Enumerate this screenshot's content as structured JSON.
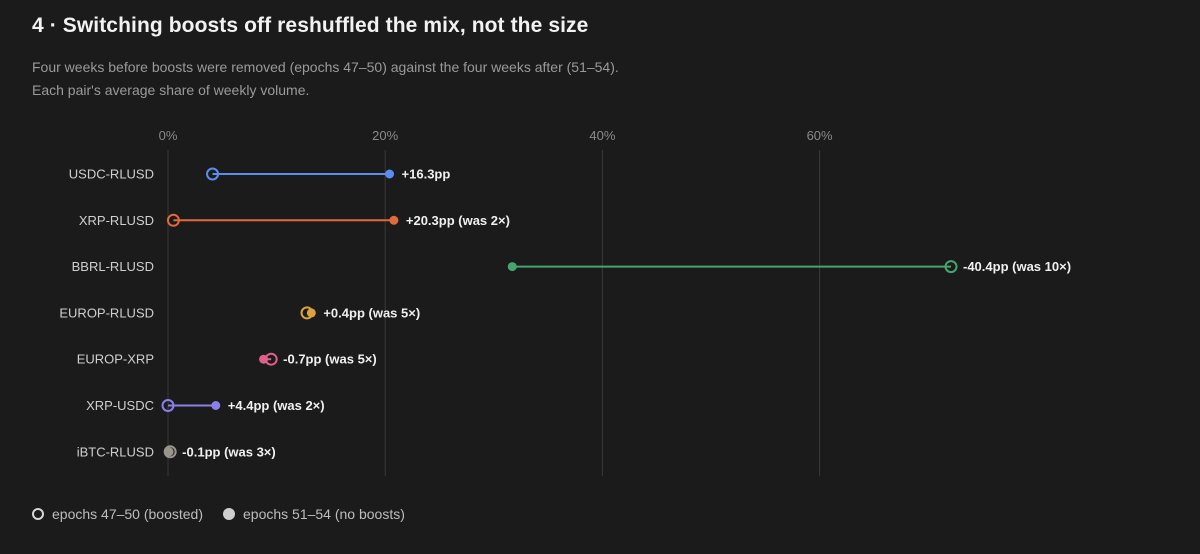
{
  "header": {
    "title": "4 · Switching boosts off reshuffled the mix, not the size",
    "subtitle_line1": "Four weeks before boosts were removed (epochs 47–50) against the four weeks after (51–54).",
    "subtitle_line2": "Each pair's average share of weekly volume."
  },
  "legend": {
    "before_label": "epochs 47–50 (boosted)",
    "after_label": "epochs 51–54 (no boosts)"
  },
  "chart_data": {
    "type": "dumbbell",
    "x_unit": "%",
    "xlim": [
      0,
      70
    ],
    "x_ticks": [
      0,
      20,
      40,
      60
    ],
    "x_tick_labels": [
      "0%",
      "20%",
      "40%",
      "60%"
    ],
    "grid": true,
    "legend_position": "bottom-left",
    "series": [
      {
        "name": "epochs 47–50 (boosted)",
        "marker": "open-circle"
      },
      {
        "name": "epochs 51–54 (no boosts)",
        "marker": "filled-circle"
      }
    ],
    "rows": [
      {
        "pair": "USDC-RLUSD",
        "before": 4.1,
        "after": 20.4,
        "label": "+16.3pp",
        "color": "#5b8def"
      },
      {
        "pair": "XRP-RLUSD",
        "before": 0.5,
        "after": 20.8,
        "label": "+20.3pp (was 2×)",
        "color": "#e0693d"
      },
      {
        "pair": "BBRL-RLUSD",
        "before": 72.1,
        "after": 31.7,
        "label": "-40.4pp (was 10×)",
        "color": "#45a56e"
      },
      {
        "pair": "EUROP-RLUSD",
        "before": 12.8,
        "after": 13.2,
        "label": "+0.4pp (was 5×)",
        "color": "#dca23c"
      },
      {
        "pair": "EUROP-XRP",
        "before": 9.5,
        "after": 8.8,
        "label": "-0.7pp (was 5×)",
        "color": "#e0608b"
      },
      {
        "pair": "XRP-USDC",
        "before": 0.0,
        "after": 4.4,
        "label": "+4.4pp (was 2×)",
        "color": "#8b7fe8"
      },
      {
        "pair": "iBTC-RLUSD",
        "before": 0.2,
        "after": 0.1,
        "label": "-0.1pp (was 3×)",
        "color": "#9a958c"
      }
    ]
  }
}
